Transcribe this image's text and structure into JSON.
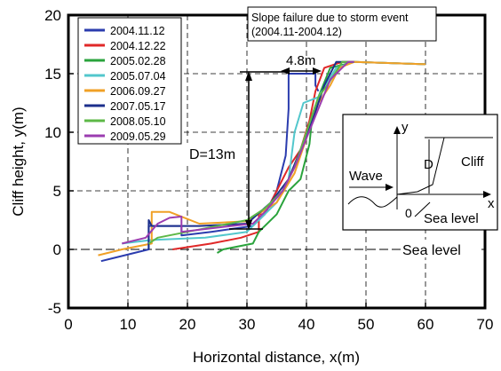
{
  "chart_data": {
    "type": "line",
    "xlabel": "Horizontal distance, x(m)",
    "ylabel": "Cliff height, y(m)",
    "xlim": [
      0,
      70
    ],
    "ylim": [
      -5,
      20
    ],
    "x_ticks": [
      "0",
      "10",
      "20",
      "30",
      "40",
      "50",
      "60",
      "70"
    ],
    "y_ticks": [
      "-5",
      "0",
      "5",
      "10",
      "15",
      "20"
    ],
    "grid": "dashed",
    "legend_position": "top-left",
    "series": [
      {
        "name": "2004.11.12",
        "color": "#2b3cae",
        "points": [
          [
            5.5,
            -1
          ],
          [
            13.5,
            0
          ],
          [
            13.5,
            2
          ],
          [
            19,
            2
          ],
          [
            19,
            1.2
          ],
          [
            24,
            1.5
          ],
          [
            31,
            2
          ],
          [
            33,
            3
          ],
          [
            35,
            5
          ],
          [
            36.5,
            8
          ],
          [
            37,
            12
          ],
          [
            37,
            15
          ],
          [
            41.5,
            15
          ],
          [
            41.5,
            14
          ],
          [
            42,
            13.5
          ]
        ]
      },
      {
        "name": "2004.12.22",
        "color": "#e02828",
        "points": [
          [
            17.5,
            0
          ],
          [
            24,
            0.5
          ],
          [
            29,
            1
          ],
          [
            32,
            1.5
          ],
          [
            32,
            3
          ],
          [
            33,
            3
          ],
          [
            35,
            5
          ],
          [
            37,
            7
          ],
          [
            39,
            8.5
          ],
          [
            40.5,
            11
          ],
          [
            41.5,
            13.5
          ],
          [
            43,
            15.5
          ],
          [
            46,
            16
          ],
          [
            48,
            16
          ],
          [
            60,
            15.8
          ]
        ]
      },
      {
        "name": "2005.02.28",
        "color": "#2aa33c",
        "points": [
          [
            25,
            -0.3
          ],
          [
            26,
            0
          ],
          [
            31,
            0.5
          ],
          [
            32,
            1.5
          ],
          [
            35,
            3
          ],
          [
            37,
            5
          ],
          [
            39,
            6
          ],
          [
            40.5,
            9
          ],
          [
            41,
            11.5
          ],
          [
            42,
            13
          ],
          [
            44,
            15.5
          ],
          [
            48,
            16
          ],
          [
            60,
            15.8
          ]
        ]
      },
      {
        "name": "2005.07.04",
        "color": "#52c7cc",
        "points": [
          [
            9,
            0.5
          ],
          [
            14,
            0.8
          ],
          [
            23,
            1
          ],
          [
            30,
            1.5
          ],
          [
            35,
            4
          ],
          [
            37,
            6
          ],
          [
            38,
            10
          ],
          [
            39.5,
            12.5
          ],
          [
            42,
            13
          ],
          [
            45,
            15.5
          ],
          [
            48,
            16
          ],
          [
            60,
            15.8
          ]
        ]
      },
      {
        "name": "2006.09.27",
        "color": "#f0a026",
        "points": [
          [
            5,
            -0.5
          ],
          [
            9,
            0
          ],
          [
            14,
            0.5
          ],
          [
            14,
            3.2
          ],
          [
            17,
            3.2
          ],
          [
            18,
            3
          ],
          [
            22,
            2.2
          ],
          [
            30,
            2.4
          ],
          [
            35,
            4
          ],
          [
            38,
            6.5
          ],
          [
            40,
            9.5
          ],
          [
            42,
            12.5
          ],
          [
            44,
            14
          ],
          [
            45.5,
            15.5
          ],
          [
            48,
            16
          ],
          [
            60,
            15.8
          ]
        ]
      },
      {
        "name": "2007.05.17",
        "color": "#1c2f8c",
        "points": [
          [
            13.5,
            0
          ],
          [
            13.5,
            2.5
          ],
          [
            14,
            2
          ],
          [
            16,
            2
          ],
          [
            22,
            2
          ],
          [
            30,
            2.2
          ],
          [
            34,
            4
          ],
          [
            37,
            6
          ],
          [
            39,
            8.5
          ],
          [
            41,
            11
          ],
          [
            43,
            14
          ],
          [
            45,
            16
          ],
          [
            48,
            16
          ]
        ]
      },
      {
        "name": "2008.05.10",
        "color": "#5db847",
        "points": [
          [
            13.5,
            0.5
          ],
          [
            15,
            1
          ],
          [
            20,
            1.5
          ],
          [
            25,
            2
          ],
          [
            30,
            2.5
          ],
          [
            33,
            3.5
          ],
          [
            36,
            5
          ],
          [
            38,
            7
          ],
          [
            40,
            10
          ],
          [
            42,
            13
          ],
          [
            43.5,
            14
          ],
          [
            46,
            16
          ],
          [
            48,
            16
          ]
        ]
      },
      {
        "name": "2009.05.29",
        "color": "#9b3db0",
        "points": [
          [
            9,
            0.5
          ],
          [
            13,
            1
          ],
          [
            15,
            2.2
          ],
          [
            17,
            2.7
          ],
          [
            19,
            2.8
          ],
          [
            19,
            1.5
          ],
          [
            24,
            1.8
          ],
          [
            31,
            2.2
          ],
          [
            33,
            3.2
          ],
          [
            36,
            5
          ],
          [
            38,
            7
          ],
          [
            40,
            9.5
          ],
          [
            42,
            12
          ],
          [
            44,
            14.5
          ],
          [
            46,
            15.5
          ],
          [
            47,
            16
          ],
          [
            48,
            16
          ]
        ]
      }
    ],
    "annotations": {
      "slope_failure": "Slope failure due to storm event",
      "slope_failure_period": "(2004.11-2004.12)",
      "width_label": "4.8m",
      "depth_label": "D=13m",
      "sea_level_label": "Sea level"
    },
    "inset": {
      "y_label": "y",
      "x_label": "x",
      "d_label": "D",
      "cliff_label": "Cliff",
      "wave_label": "Wave",
      "origin_label": "0",
      "sea_level_label": "Sea level"
    }
  }
}
